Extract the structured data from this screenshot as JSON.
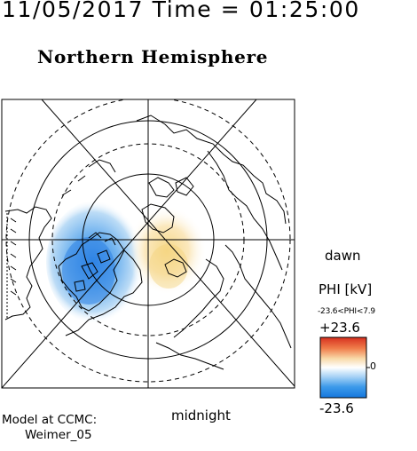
{
  "header": {
    "date_time": "11/05/2017 Time = 01:25:00",
    "title": "Northern Hemisphere"
  },
  "map": {
    "dawn_label": "dawn",
    "midnight_label": "midnight",
    "colors": {
      "negative": "#3a8fe8",
      "positive": "#f3c15a",
      "land_outline": "#000000",
      "grid": "#000000"
    }
  },
  "colorbar": {
    "title": "PHI [kV]",
    "range_text": "-23.6<PHI<7.9",
    "max_label": "+23.6",
    "zero_label": "0",
    "min_label": "-23.6",
    "max": 23.6,
    "min": -23.6,
    "data_min": -23.6,
    "data_max": 7.9
  },
  "footer": {
    "model_line1": "Model at CCMC:",
    "model_line2": "Weimer_05"
  }
}
